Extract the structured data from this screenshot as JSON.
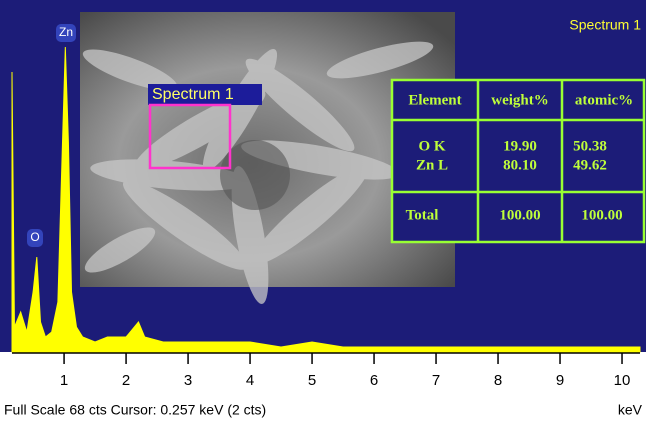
{
  "chart_data": {
    "type": "area",
    "title": "Spectrum 1",
    "x_label": "keV",
    "footer": "Full Scale 68 cts  Cursor: 0.257 keV (2 cts)",
    "color": "#ffff00",
    "x": [
      0.16,
      0.2,
      0.3,
      0.4,
      0.5,
      0.56,
      0.62,
      0.7,
      0.8,
      0.9,
      0.97,
      1.02,
      1.07,
      1.12,
      1.2,
      1.3,
      1.5,
      1.7,
      2.0,
      2.2,
      2.3,
      2.6,
      3.0,
      3.5,
      4.0,
      4.5,
      5.0,
      5.5,
      6.0,
      6.5,
      7.0,
      7.5,
      8.0,
      8.6,
      9.0,
      9.6,
      10.29
    ],
    "values": [
      56,
      5,
      8,
      4,
      12,
      19,
      6,
      3,
      4,
      10,
      40,
      61,
      42,
      12,
      5,
      3,
      2,
      3,
      3,
      6,
      3,
      2,
      2,
      2,
      2,
      1,
      2,
      1,
      1,
      1,
      1,
      1,
      1,
      1,
      1,
      1,
      1
    ],
    "xlim": [
      0.16,
      10.29
    ],
    "ylim": [
      0,
      68
    ],
    "xticks": [
      1,
      2,
      3,
      4,
      5,
      6,
      7,
      8,
      9,
      10
    ],
    "peak_labels": [
      "Zn",
      "O"
    ],
    "inset_label": "Spectrum 1",
    "table": {
      "header": [
        "Element",
        "weight%",
        "atomic%"
      ],
      "rows": [
        [
          "O K",
          "19.90",
          "50.38"
        ],
        [
          "Zn L",
          "80.10",
          "49.62"
        ]
      ],
      "total": [
        "Total",
        "100.00",
        "100.00"
      ]
    }
  }
}
